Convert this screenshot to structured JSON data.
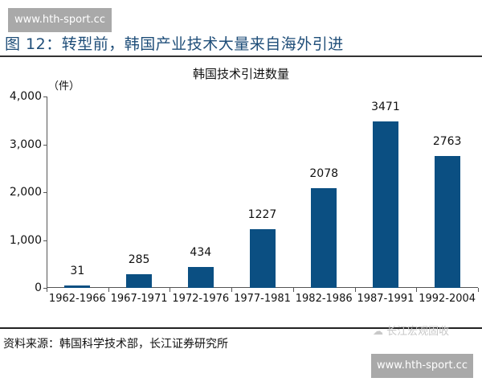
{
  "watermark_top": "www.hth-sport.cc",
  "watermark_bottom": "www.hth-sport.cc",
  "watermark_wechat": "长江宏观固收",
  "figure_title": "图 12：转型前，韩国产业技术大量来自海外引进",
  "source_note": "资料来源：韩国科学技术部，长江证券研究所",
  "colors": {
    "bar": "#0b4f82",
    "title": "#1f4e79"
  },
  "chart_data": {
    "type": "bar",
    "title": "韩国技术引进数量",
    "xlabel": "",
    "ylabel": "（件）",
    "ylim": [
      0,
      4000
    ],
    "yticks": [
      "0",
      "1,000",
      "2,000",
      "3,000",
      "4,000"
    ],
    "grid": false,
    "categories": [
      "1962-1966",
      "1967-1971",
      "1972-1976",
      "1977-1981",
      "1982-1986",
      "1987-1991",
      "1992-2004"
    ],
    "values": [
      31,
      285,
      434,
      1227,
      2078,
      3471,
      2763
    ]
  }
}
